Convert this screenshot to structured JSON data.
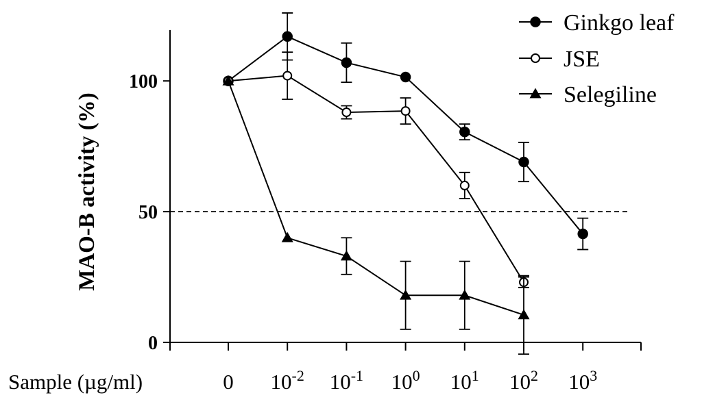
{
  "chart_data": {
    "type": "line",
    "title": "",
    "xlabel": "Sample (µg/ml)",
    "ylabel": "MAO-B activity (%)",
    "ylim": [
      0,
      120
    ],
    "y_ticks": [
      {
        "value": 0,
        "label": "0"
      },
      {
        "value": 50,
        "label": "50"
      },
      {
        "value": 100,
        "label": "100"
      }
    ],
    "categories": [
      {
        "base": "0",
        "exp": ""
      },
      {
        "base": "10",
        "exp": "-2"
      },
      {
        "base": "10",
        "exp": "-1"
      },
      {
        "base": "10",
        "exp": "0"
      },
      {
        "base": "10",
        "exp": "1"
      },
      {
        "base": "10",
        "exp": "2"
      },
      {
        "base": "10",
        "exp": "3"
      }
    ],
    "reference_line": {
      "y": 50,
      "style": "dashed"
    },
    "legend_position": "top-right",
    "series": [
      {
        "name": "Ginkgo leaf",
        "marker": "filled-circle",
        "values": [
          100,
          117,
          107,
          101.5,
          80.5,
          69,
          41.5
        ],
        "errors": [
          0,
          9,
          7.5,
          0,
          3,
          7.5,
          6
        ]
      },
      {
        "name": "JSE",
        "marker": "open-circle",
        "values": [
          100,
          102,
          88,
          88.5,
          60,
          23,
          null
        ],
        "errors": [
          0,
          9,
          2.5,
          5,
          5,
          2,
          null
        ]
      },
      {
        "name": "Selegiline",
        "marker": "filled-triangle",
        "values": [
          100,
          40,
          33,
          18,
          18,
          10.5,
          null
        ],
        "errors": [
          0,
          0,
          7,
          13,
          13,
          15,
          null
        ]
      }
    ]
  }
}
